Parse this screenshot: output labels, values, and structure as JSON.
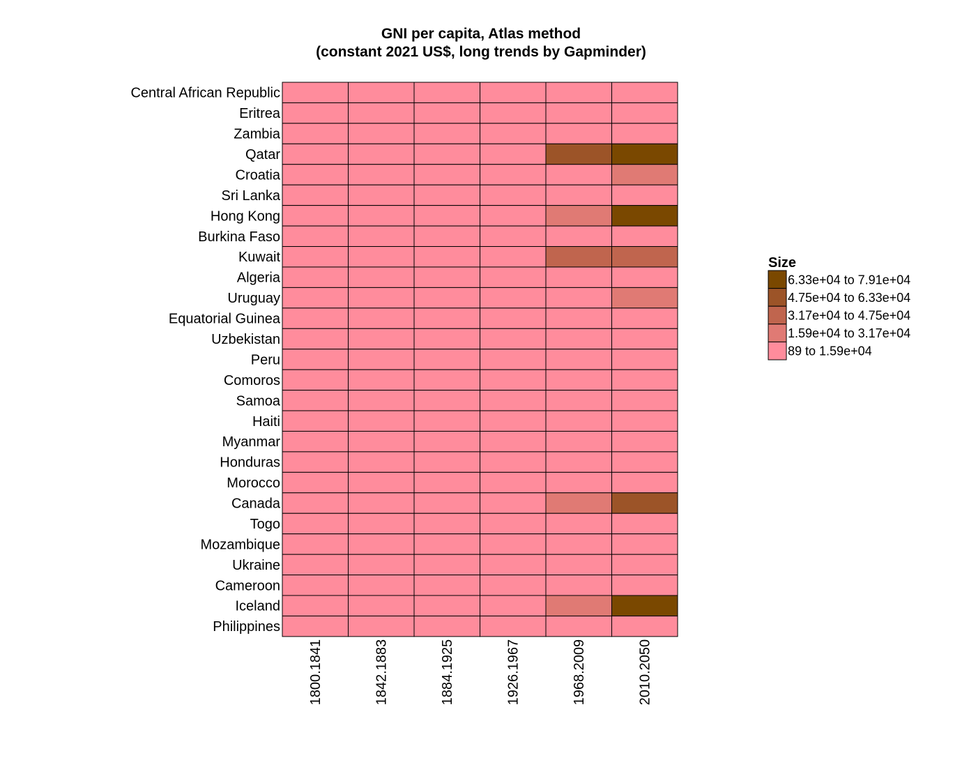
{
  "chart_data": {
    "type": "heatmap",
    "title": [
      "GNI per capita, Atlas method",
      "(constant 2021 US$, long trends by Gapminder)"
    ],
    "rows": [
      "Central African Republic",
      "Eritrea",
      "Zambia",
      "Qatar",
      "Croatia",
      "Sri Lanka",
      "Hong Kong",
      "Burkina Faso",
      "Kuwait",
      "Algeria",
      "Uruguay",
      "Equatorial Guinea",
      "Uzbekistan",
      "Peru",
      "Comoros",
      "Samoa",
      "Haiti",
      "Myanmar",
      "Honduras",
      "Morocco",
      "Canada",
      "Togo",
      "Mozambique",
      "Ukraine",
      "Cameroon",
      "Iceland",
      "Philippines"
    ],
    "columns": [
      "1800.1841",
      "1842.1883",
      "1884.1925",
      "1926.1967",
      "1968.2009",
      "2010.2050"
    ],
    "cell_bins": [
      [
        0,
        0,
        0,
        0,
        0,
        0
      ],
      [
        0,
        0,
        0,
        0,
        0,
        0
      ],
      [
        0,
        0,
        0,
        0,
        0,
        0
      ],
      [
        0,
        0,
        0,
        0,
        3,
        4
      ],
      [
        0,
        0,
        0,
        0,
        0,
        1
      ],
      [
        0,
        0,
        0,
        0,
        0,
        0
      ],
      [
        0,
        0,
        0,
        0,
        1,
        4
      ],
      [
        0,
        0,
        0,
        0,
        0,
        0
      ],
      [
        0,
        0,
        0,
        0,
        2,
        2
      ],
      [
        0,
        0,
        0,
        0,
        0,
        0
      ],
      [
        0,
        0,
        0,
        0,
        0,
        1
      ],
      [
        0,
        0,
        0,
        0,
        0,
        0
      ],
      [
        0,
        0,
        0,
        0,
        0,
        0
      ],
      [
        0,
        0,
        0,
        0,
        0,
        0
      ],
      [
        0,
        0,
        0,
        0,
        0,
        0
      ],
      [
        0,
        0,
        0,
        0,
        0,
        0
      ],
      [
        0,
        0,
        0,
        0,
        0,
        0
      ],
      [
        0,
        0,
        0,
        0,
        0,
        0
      ],
      [
        0,
        0,
        0,
        0,
        0,
        0
      ],
      [
        0,
        0,
        0,
        0,
        0,
        0
      ],
      [
        0,
        0,
        0,
        0,
        1,
        3
      ],
      [
        0,
        0,
        0,
        0,
        0,
        0
      ],
      [
        0,
        0,
        0,
        0,
        0,
        0
      ],
      [
        0,
        0,
        0,
        0,
        0,
        0
      ],
      [
        0,
        0,
        0,
        0,
        0,
        0
      ],
      [
        0,
        0,
        0,
        0,
        1,
        4
      ],
      [
        0,
        0,
        0,
        0,
        0,
        0
      ]
    ],
    "legend": {
      "title": "Size",
      "placement": "right",
      "bins": [
        {
          "label": "89  to  1.59e+04",
          "color": "#ff8c9c"
        },
        {
          "label": "1.59e+04  to  3.17e+04",
          "color": "#e07a74"
        },
        {
          "label": "3.17e+04  to  4.75e+04",
          "color": "#c0654e"
        },
        {
          "label": "4.75e+04  to  6.33e+04",
          "color": "#9c5428"
        },
        {
          "label": "6.33e+04  to  7.91e+04",
          "color": "#7a4800"
        }
      ]
    },
    "grid": true
  }
}
